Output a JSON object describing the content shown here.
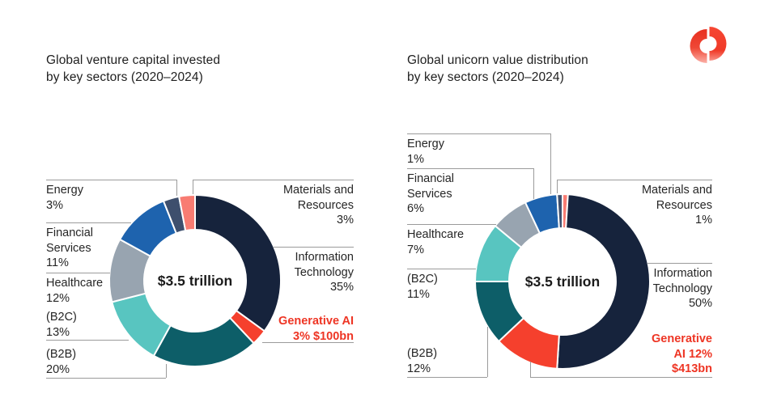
{
  "colors": {
    "accent_red": "#F5402D",
    "navy": "#16233C",
    "leader_line_gray": "#9B9B9B",
    "text": "#262626",
    "logo_red": "#EE3B2C"
  },
  "logo": {
    "name": "red donut brand mark"
  },
  "charts": [
    {
      "title": [
        "Global venture capital invested",
        "by key sectors (2020–2024)"
      ],
      "center_label": "$3.5 trillion",
      "callouts": {
        "energy": [
          "Energy",
          "3%"
        ],
        "financial_services": [
          "Financial",
          "Services",
          "11%"
        ],
        "healthcare": [
          "Healthcare",
          "12%"
        ],
        "b2c": [
          "(B2C)",
          "13%"
        ],
        "b2b": [
          "(B2B)",
          "20%"
        ],
        "materials": [
          "Materials and",
          "Resources",
          "3%"
        ],
        "information_technology": [
          "Information",
          "Technology",
          "35%"
        ],
        "generative_ai": [
          "Generative AI",
          "3% $100bn"
        ]
      }
    },
    {
      "title": [
        "Global unicorn value distribution",
        "by key sectors (2020–2024)"
      ],
      "center_label": "$3.5 trillion",
      "callouts": {
        "energy": [
          "Energy",
          "1%"
        ],
        "financial_services": [
          "Financial",
          "Services",
          "6%"
        ],
        "healthcare": [
          "Healthcare",
          "7%"
        ],
        "b2c": [
          "(B2C)",
          "11%"
        ],
        "b2b": [
          "(B2B)",
          "12%"
        ],
        "materials": [
          "Materials and",
          "Resources",
          "1%"
        ],
        "information_technology": [
          "Information",
          "Technology",
          "50%"
        ],
        "generative_ai": [
          "Generative",
          "AI 12%",
          "$413bn"
        ]
      }
    }
  ],
  "chart_data": [
    {
      "type": "pie",
      "style": "donut",
      "title": "Global venture capital invested by key sectors (2020–2024)",
      "center_total": "$3.5 trillion",
      "start_angle_deg": 0,
      "segments": [
        {
          "id": "information-technology",
          "label": "Information Technology",
          "value": 35,
          "color": "#16233C"
        },
        {
          "id": "generative-ai",
          "label": "Generative AI",
          "value": 3,
          "color": "#F5402D",
          "note": "$100bn"
        },
        {
          "id": "b2b",
          "label": "(B2B)",
          "value": 20,
          "color": "#0D5E68"
        },
        {
          "id": "b2c",
          "label": "(B2C)",
          "value": 13,
          "color": "#58C5C0"
        },
        {
          "id": "healthcare",
          "label": "Healthcare",
          "value": 12,
          "color": "#98A4B0"
        },
        {
          "id": "financial-services",
          "label": "Financial Services",
          "value": 11,
          "color": "#1E63AE"
        },
        {
          "id": "energy",
          "label": "Energy",
          "value": 3,
          "color": "#3E4F6D"
        },
        {
          "id": "materials-and-resources",
          "label": "Materials and Resources",
          "value": 3,
          "color": "#F87C72"
        }
      ]
    },
    {
      "type": "pie",
      "style": "donut",
      "title": "Global unicorn value distribution by key sectors (2020–2024)",
      "center_total": "$3.5 trillion",
      "start_angle_deg": 0,
      "segments": [
        {
          "id": "materials-and-resources",
          "label": "Materials and Resources",
          "value": 1,
          "color": "#F87C72"
        },
        {
          "id": "information-technology",
          "label": "Information Technology",
          "value": 50,
          "color": "#16233C"
        },
        {
          "id": "generative-ai",
          "label": "Generative AI",
          "value": 12,
          "color": "#F5402D",
          "note": "$413bn"
        },
        {
          "id": "b2b",
          "label": "(B2B)",
          "value": 12,
          "color": "#0D5E68"
        },
        {
          "id": "b2c",
          "label": "(B2C)",
          "value": 11,
          "color": "#58C5C0"
        },
        {
          "id": "healthcare",
          "label": "Healthcare",
          "value": 7,
          "color": "#98A4B0"
        },
        {
          "id": "financial-services",
          "label": "Financial Services",
          "value": 6,
          "color": "#1E63AE"
        },
        {
          "id": "energy",
          "label": "Energy",
          "value": 1,
          "color": "#3E4F6D"
        }
      ]
    }
  ]
}
